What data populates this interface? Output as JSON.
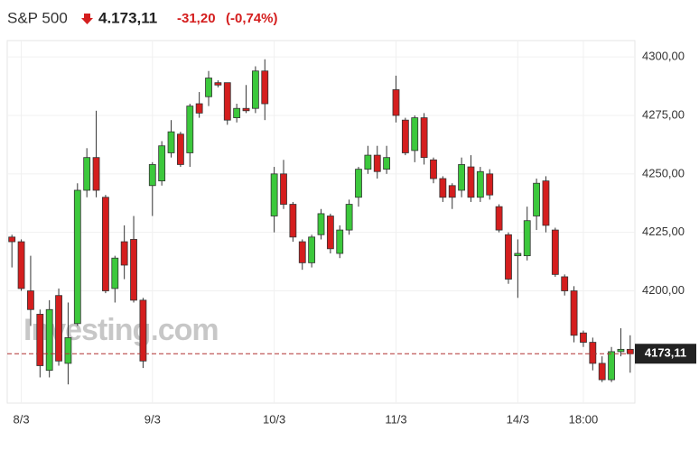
{
  "chart_data": {
    "type": "candlestick",
    "title": "S&P 500",
    "price": "4.173,11",
    "change": "-31,20",
    "change_pct": "(-0,74%)",
    "watermark": "Investing.com",
    "categories": [
      null,
      "8/3",
      null,
      null,
      null,
      null,
      null,
      null,
      null,
      null,
      null,
      null,
      null,
      null,
      null,
      "9/3",
      null,
      null,
      null,
      null,
      null,
      null,
      null,
      null,
      null,
      null,
      null,
      null,
      "10/3",
      null,
      null,
      null,
      null,
      null,
      null,
      null,
      null,
      null,
      null,
      null,
      null,
      "11/3",
      null,
      null,
      null,
      null,
      null,
      null,
      null,
      null,
      null,
      null,
      null,
      null,
      "14/3",
      null,
      null,
      null,
      null,
      null,
      null,
      "18:00",
      null,
      null,
      null,
      null,
      null
    ],
    "series": {
      "open": [
        4223,
        4221,
        4200,
        4190,
        4166,
        4198,
        4169,
        4186,
        4243,
        4257,
        4240,
        4201,
        4221,
        4222,
        4196,
        4245,
        4247,
        4259,
        4267,
        4259,
        4280,
        4283,
        4289,
        4289,
        4274,
        4278,
        4278,
        4294,
        4232,
        4250,
        4237,
        4221,
        4212,
        4224,
        4232,
        4216,
        4226,
        4240,
        4252,
        4258,
        4252,
        4286,
        4273,
        4260,
        4274,
        4256,
        4248,
        4245,
        4243,
        4253,
        4240,
        4250,
        4236,
        4224,
        4215,
        4215,
        4232,
        4247,
        4226,
        4206,
        4200,
        4182,
        4178,
        4169,
        4162,
        4174,
        4175
      ],
      "high": [
        4224,
        4222,
        4215,
        4192,
        4196,
        4201,
        4195,
        4246,
        4261,
        4277,
        4241,
        4215,
        4228,
        4232,
        4197,
        4255,
        4264,
        4273,
        4268,
        4280,
        4285,
        4294,
        4290,
        4289,
        4280,
        4288,
        4296,
        4299,
        4253,
        4256,
        4238,
        4222,
        4224,
        4235,
        4233,
        4228,
        4239,
        4253,
        4262,
        4262,
        4262,
        4292,
        4274,
        4275,
        4276,
        4257,
        4249,
        4246,
        4257,
        4258,
        4253,
        4252,
        4237,
        4225,
        4222,
        4236,
        4248,
        4249,
        4227,
        4207,
        4202,
        4183,
        4180,
        4172,
        4176,
        4184,
        4181
      ],
      "low": [
        4210,
        4200,
        4185,
        4163,
        4163,
        4168,
        4160,
        4185,
        4240,
        4240,
        4199,
        4195,
        4205,
        4195,
        4167,
        4232,
        4245,
        4257,
        4253,
        4253,
        4274,
        4279,
        4287,
        4271,
        4272,
        4276,
        4276,
        4273,
        4225,
        4235,
        4221,
        4209,
        4210,
        4222,
        4216,
        4214,
        4224,
        4236,
        4250,
        4248,
        4250,
        4272,
        4258,
        4255,
        4254,
        4246,
        4238,
        4235,
        4240,
        4238,
        4238,
        4239,
        4225,
        4203,
        4197,
        4213,
        4226,
        4225,
        4206,
        4198,
        4178,
        4176,
        4166,
        4161,
        4161,
        4172,
        4165
      ],
      "close": [
        4221,
        4201,
        4192,
        4168,
        4192,
        4170,
        4180,
        4243,
        4257,
        4243,
        4200,
        4214,
        4211,
        4196,
        4170,
        4254,
        4262,
        4268,
        4254,
        4279,
        4276,
        4291,
        4288,
        4273,
        4278,
        4277,
        4294,
        4280,
        4250,
        4237,
        4223,
        4212,
        4223,
        4233,
        4218,
        4226,
        4237,
        4252,
        4258,
        4251,
        4257,
        4275,
        4259,
        4274,
        4257,
        4248,
        4240,
        4240,
        4254,
        4240,
        4251,
        4241,
        4226,
        4205,
        4216,
        4230,
        4246,
        4228,
        4207,
        4200,
        4181,
        4178,
        4169,
        4162,
        4174,
        4175,
        4173.11
      ]
    },
    "up_color": "#3cc83c",
    "down_color": "#d41e1e",
    "last_price": {
      "value": 4173.11,
      "label": "4173,11"
    },
    "ylim": [
      4152,
      4307
    ],
    "yticks": [
      {
        "value": 4200,
        "label": "4200,00"
      },
      {
        "value": 4225,
        "label": "4225,00"
      },
      {
        "value": 4250,
        "label": "4250,00"
      },
      {
        "value": 4275,
        "label": "4275,00"
      },
      {
        "value": 4300,
        "label": "4300,00"
      }
    ],
    "grid": true
  }
}
